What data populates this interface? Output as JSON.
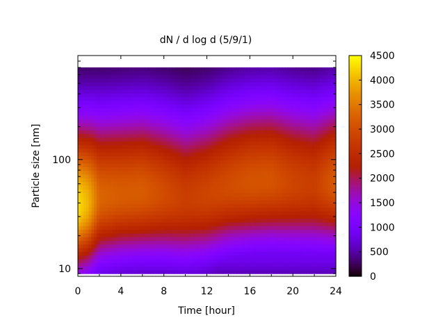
{
  "chart_data": {
    "type": "heatmap",
    "title": "dN / d log d (5/9/1)",
    "xlabel": "Time [hour]",
    "ylabel": "Particle size [nm]",
    "x_range": [
      0,
      24
    ],
    "x_ticks": [
      0,
      4,
      8,
      12,
      16,
      20,
      24
    ],
    "y_scale": "log",
    "y_range_nm": [
      8.5,
      900
    ],
    "y_data_top_nm": 700,
    "y_data_bottom_nm": 9,
    "y_ticks": [
      10,
      100
    ],
    "colorbar": {
      "palette": "gnuplot",
      "range": [
        0,
        4500
      ],
      "ticks": [
        0,
        500,
        1000,
        1500,
        2000,
        2500,
        3000,
        3500,
        4000,
        4500
      ]
    },
    "mode_peak": {
      "time_hour": [
        0,
        1,
        2,
        4,
        6,
        8,
        10,
        12,
        14,
        16,
        18,
        20,
        22,
        24
      ],
      "diameter_nm": [
        38,
        40,
        45,
        48,
        50,
        48,
        44,
        48,
        57,
        62,
        64,
        60,
        58,
        62
      ],
      "peak_concentration": [
        4300,
        4000,
        3300,
        3200,
        3200,
        3000,
        2800,
        2900,
        3000,
        3100,
        3100,
        2900,
        2800,
        3200
      ]
    },
    "grid": false,
    "legend": "none"
  }
}
